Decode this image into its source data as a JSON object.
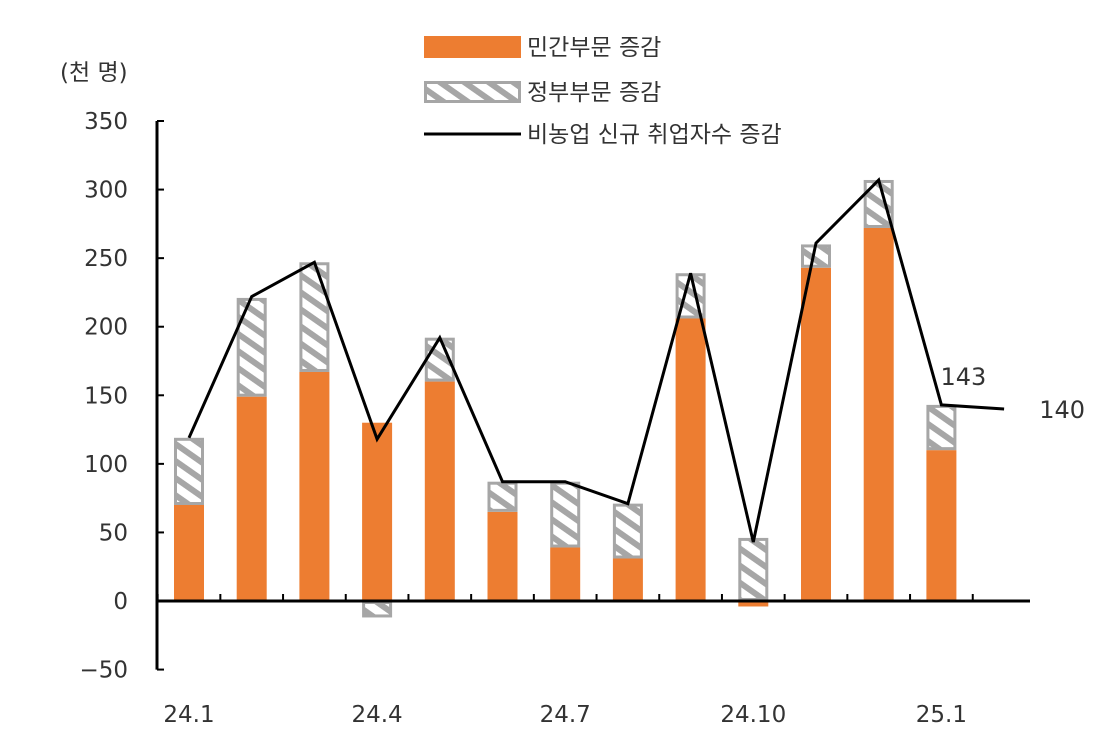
{
  "chart_data": {
    "type": "bar",
    "stacked": true,
    "unit_label": "(천 명)",
    "categories": [
      "24.1",
      "24.2",
      "24.3",
      "24.4",
      "24.5",
      "24.6",
      "24.7",
      "24.8",
      "24.9",
      "24.10",
      "24.11",
      "24.12",
      "25.1"
    ],
    "x_tick_labels": [
      "24.1",
      "24.4",
      "24.7",
      "24.10",
      "25.1"
    ],
    "ylim": [
      -50,
      350
    ],
    "y_ticks": [
      -50,
      0,
      50,
      100,
      150,
      200,
      250,
      300,
      350
    ],
    "series": [
      {
        "name": "민간부문 증감",
        "kind": "bar",
        "color": "#ED7D31",
        "values": [
          70,
          149,
          167,
          130,
          160,
          65,
          39,
          31,
          206,
          -4,
          243,
          272,
          110
        ]
      },
      {
        "name": "정부부문 증감",
        "kind": "bar",
        "pattern": "hatched",
        "color": "#A6A6A6",
        "values": [
          49,
          72,
          80,
          -12,
          32,
          22,
          48,
          40,
          33,
          46,
          17,
          35,
          33
        ]
      },
      {
        "name": "비농업 신규 취업자수 증감",
        "kind": "line",
        "color": "#000000",
        "x": [
          "24.1",
          "24.2",
          "24.3",
          "24.4",
          "24.5",
          "24.6",
          "24.7",
          "24.8",
          "24.9",
          "24.10",
          "24.11",
          "24.12",
          "25.1",
          "25.2"
        ],
        "values": [
          119,
          222,
          247,
          118,
          192,
          87,
          87,
          71,
          239,
          43,
          261,
          307,
          143,
          140
        ]
      }
    ],
    "annotations": [
      {
        "text": "143",
        "x": "25.1",
        "value": 143
      },
      {
        "text": "140",
        "x": "25.2",
        "value": 140
      }
    ],
    "legend_position": "top-center",
    "grid": false
  }
}
